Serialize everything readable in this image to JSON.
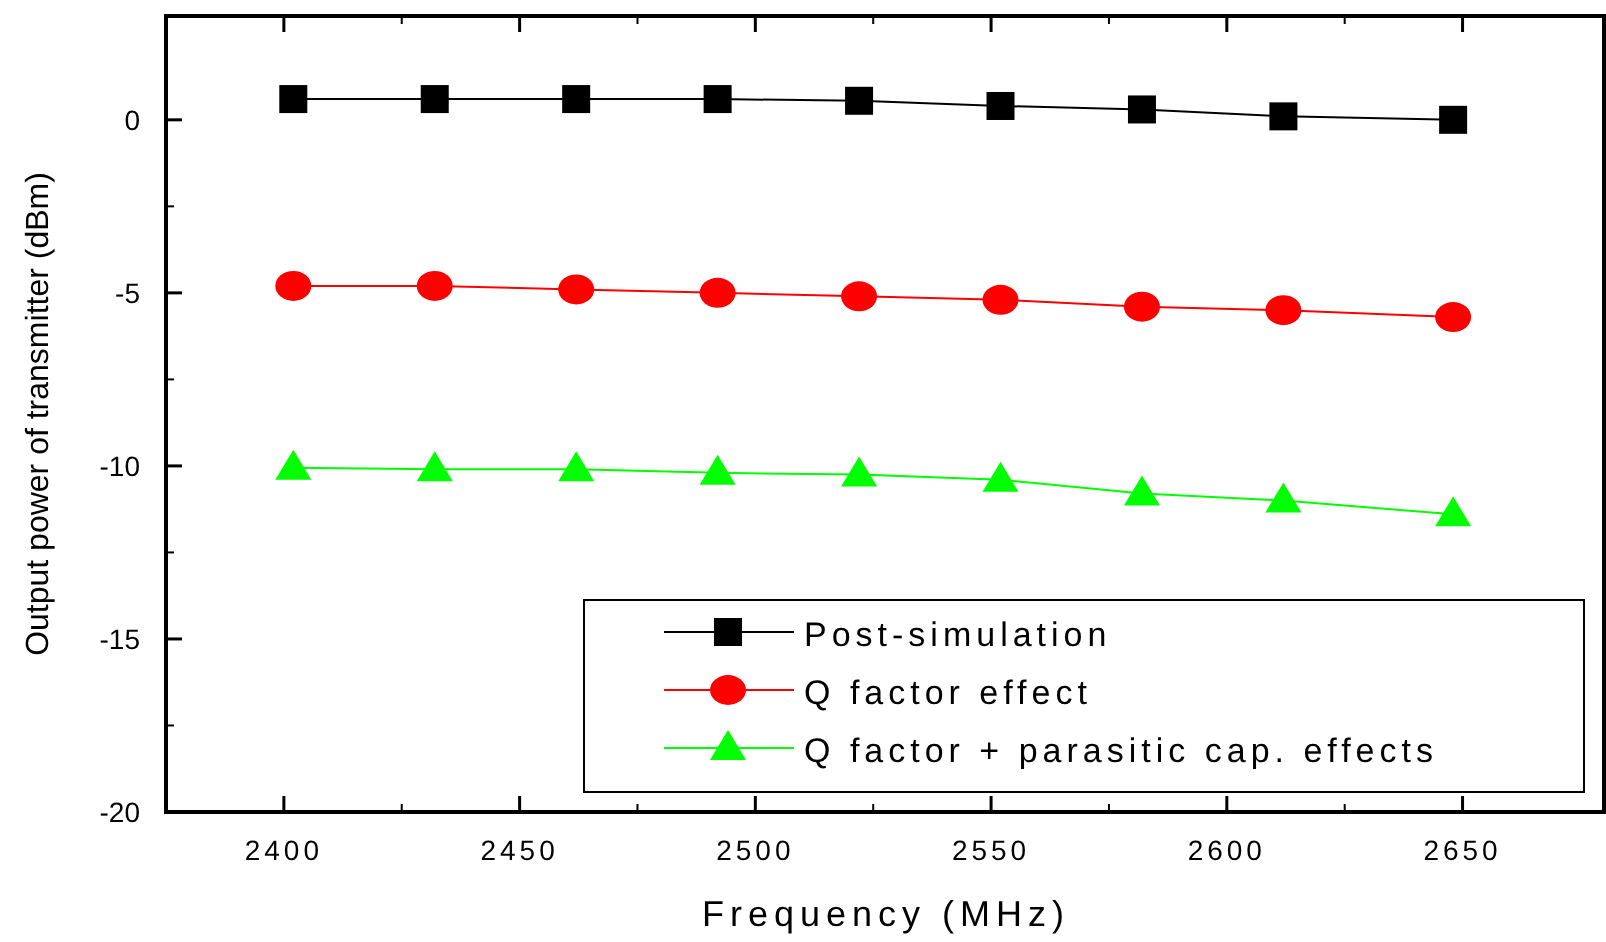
{
  "chart_data": {
    "type": "line",
    "xlabel": "Frequency (MHz)",
    "ylabel": "Output power of transmitter (dBm)",
    "x": [
      2402,
      2432,
      2462,
      2492,
      2522,
      2552,
      2582,
      2612,
      2648
    ],
    "series": [
      {
        "name": "Post-simulation",
        "color": "#000000",
        "marker": "square",
        "values": [
          0.6,
          0.6,
          0.6,
          0.6,
          0.55,
          0.4,
          0.3,
          0.1,
          0
        ]
      },
      {
        "name": "Q factor effect",
        "color": "#ff0000",
        "marker": "circle",
        "values": [
          -4.8,
          -4.8,
          -4.9,
          -5.0,
          -5.1,
          -5.2,
          -5.4,
          -5.5,
          -5.7
        ]
      },
      {
        "name": "Q factor + parasitic cap. effects",
        "color": "#00ff00",
        "marker": "triangle",
        "values": [
          -10.05,
          -10.1,
          -10.1,
          -10.2,
          -10.25,
          -10.4,
          -10.8,
          -11.0,
          -11.4
        ]
      }
    ],
    "xlim": [
      2375,
      2680
    ],
    "xticks": [
      2400,
      2450,
      2500,
      2550,
      2600,
      2650
    ],
    "ylim": [
      -20,
      3
    ],
    "yticks": [
      -20,
      -15,
      -10,
      -5,
      0
    ],
    "grid": false,
    "legend": "bottom right"
  }
}
